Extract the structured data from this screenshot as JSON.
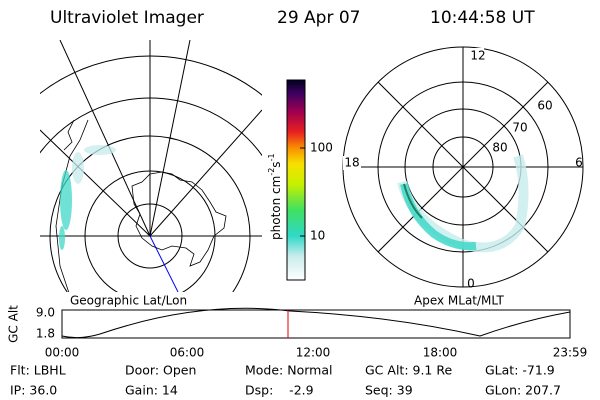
{
  "header": {
    "title": "Ultraviolet Imager",
    "date": "29 Apr 07",
    "time": "10:44:58 UT"
  },
  "polar_plot": {
    "labels": {
      "top": "12",
      "left": "18",
      "right": "6",
      "bottom": "0"
    },
    "lat_labels": [
      "60",
      "70",
      "80"
    ]
  },
  "colorbar": {
    "label": {
      "base": "photon cm",
      "exp1": "-2",
      "unit2": "s",
      "exp2": "-1"
    },
    "ticks": [
      "100",
      "10"
    ]
  },
  "panel_labels": {
    "left": "Geographic Lat/Lon",
    "right": "Apex MLat/MLT"
  },
  "orbit_plot": {
    "y_label": "GC Alt",
    "yticks": [
      "9.0",
      "1.8"
    ],
    "xticks": [
      "00:00",
      "06:00",
      "12:00",
      "18:00",
      "23:59"
    ]
  },
  "info": [
    [
      "Flt: LBHL",
      "IP: 36.0"
    ],
    [
      "Door: Open",
      "Gain: 14"
    ],
    [
      "Mode: Normal",
      "Dsp:    -2.9"
    ],
    [
      "GC Alt: 9.1 Re",
      "Seq: 39"
    ],
    [
      "GLat: -71.9",
      "GLon: 207.7"
    ]
  ]
}
